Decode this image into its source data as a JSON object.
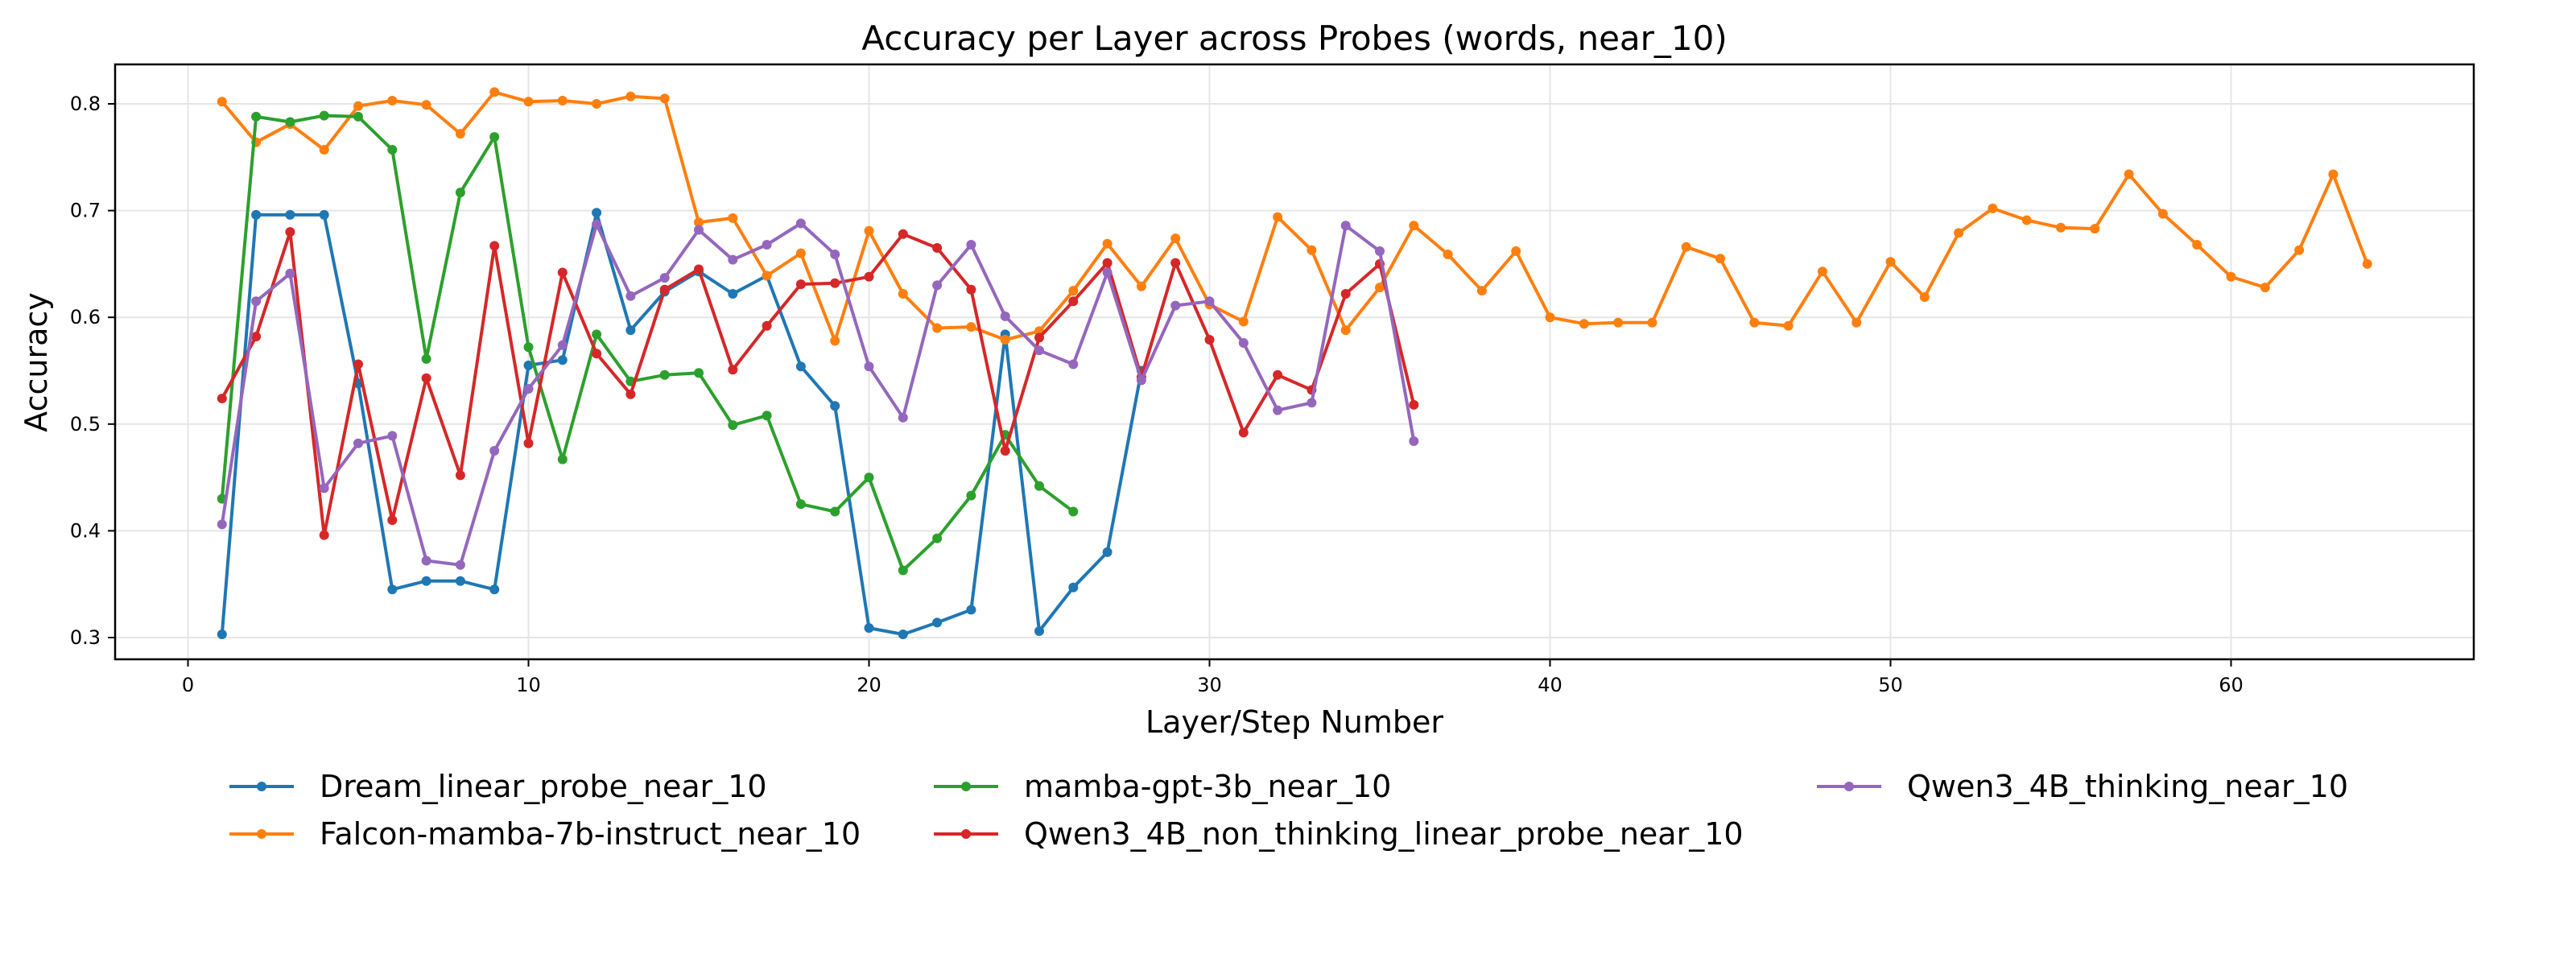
{
  "chart_data": {
    "type": "line",
    "title": "Accuracy per Layer across Probes (words, near_10)",
    "xlabel": "Layer/Step Number",
    "ylabel": "Accuracy",
    "xlim": [
      -2.2,
      67.1
    ],
    "ylim": [
      0.28,
      0.837
    ],
    "xticks": [
      0,
      10,
      20,
      30,
      40,
      50,
      60
    ],
    "yticks": [
      0.3,
      0.4,
      0.5,
      0.6,
      0.7,
      0.8
    ],
    "grid": true,
    "legend_position": "below, 3 columns",
    "series": [
      {
        "name": "Dream_linear_probe_near_10",
        "color": "#1f77b4",
        "x": [
          1,
          2,
          3,
          4,
          5,
          6,
          7,
          8,
          9,
          10,
          11,
          12,
          13,
          14,
          15,
          16,
          17,
          18,
          19,
          20,
          21,
          22,
          23,
          24,
          25,
          26,
          27,
          28
        ],
        "values": [
          0.303,
          0.696,
          0.696,
          0.696,
          0.538,
          0.345,
          0.353,
          0.353,
          0.345,
          0.555,
          0.56,
          0.698,
          0.588,
          0.624,
          0.643,
          0.622,
          0.639,
          0.554,
          0.517,
          0.309,
          0.303,
          0.314,
          0.326,
          0.584,
          0.306,
          0.347,
          0.38,
          0.55
        ]
      },
      {
        "name": "Falcon-mamba-7b-instruct_near_10",
        "color": "#ff7f0e",
        "x": [
          1,
          2,
          3,
          4,
          5,
          6,
          7,
          8,
          9,
          10,
          11,
          12,
          13,
          14,
          15,
          16,
          17,
          18,
          19,
          20,
          21,
          22,
          23,
          24,
          25,
          26,
          27,
          28,
          29,
          30,
          31,
          32,
          33,
          34,
          35,
          36,
          37,
          38,
          39,
          40,
          41,
          42,
          43,
          44,
          45,
          46,
          47,
          48,
          49,
          50,
          51,
          52,
          53,
          54,
          55,
          56,
          57,
          58,
          59,
          60,
          61,
          62,
          63,
          64
        ],
        "values": [
          0.802,
          0.764,
          0.781,
          0.757,
          0.798,
          0.803,
          0.799,
          0.772,
          0.811,
          0.802,
          0.803,
          0.8,
          0.807,
          0.805,
          0.689,
          0.693,
          0.639,
          0.66,
          0.578,
          0.681,
          0.622,
          0.59,
          0.591,
          0.579,
          0.587,
          0.625,
          0.669,
          0.629,
          0.674,
          0.612,
          0.596,
          0.694,
          0.663,
          0.588,
          0.628,
          0.686,
          0.659,
          0.625,
          0.662,
          0.6,
          0.594,
          0.595,
          0.595,
          0.666,
          0.655,
          0.595,
          0.592,
          0.643,
          0.595,
          0.652,
          0.619,
          0.679,
          0.702,
          0.691,
          0.684,
          0.683,
          0.734,
          0.697,
          0.668,
          0.638,
          0.628,
          0.663,
          0.734,
          0.65
        ]
      },
      {
        "name": "mamba-gpt-3b_near_10",
        "color": "#2ca02c",
        "x": [
          1,
          2,
          3,
          4,
          5,
          6,
          7,
          8,
          9,
          10,
          11,
          12,
          13,
          14,
          15,
          16,
          17,
          18,
          19,
          20,
          21,
          22,
          23,
          24,
          25,
          26
        ],
        "values": [
          0.43,
          0.788,
          0.783,
          0.789,
          0.788,
          0.757,
          0.561,
          0.717,
          0.769,
          0.572,
          0.467,
          0.584,
          0.54,
          0.546,
          0.548,
          0.499,
          0.508,
          0.425,
          0.418,
          0.45,
          0.363,
          0.393,
          0.433,
          0.49,
          0.442,
          0.418
        ]
      },
      {
        "name": "Qwen3_4B_non_thinking_linear_probe_near_10",
        "color": "#d62728",
        "x": [
          1,
          2,
          3,
          4,
          5,
          6,
          7,
          8,
          9,
          10,
          11,
          12,
          13,
          14,
          15,
          16,
          17,
          18,
          19,
          20,
          21,
          22,
          23,
          24,
          25,
          26,
          27,
          28,
          29,
          30,
          31,
          32,
          33,
          34,
          35,
          36
        ],
        "values": [
          0.524,
          0.582,
          0.68,
          0.396,
          0.556,
          0.41,
          0.543,
          0.452,
          0.667,
          0.482,
          0.642,
          0.566,
          0.528,
          0.626,
          0.645,
          0.551,
          0.592,
          0.631,
          0.632,
          0.638,
          0.678,
          0.665,
          0.626,
          0.475,
          0.581,
          0.615,
          0.651,
          0.544,
          0.651,
          0.579,
          0.492,
          0.546,
          0.532,
          0.622,
          0.65,
          0.518
        ]
      },
      {
        "name": "Qwen3_4B_thinking_near_10",
        "color": "#9467bd",
        "x": [
          1,
          2,
          3,
          4,
          5,
          6,
          7,
          8,
          9,
          10,
          11,
          12,
          13,
          14,
          15,
          16,
          17,
          18,
          19,
          20,
          21,
          22,
          23,
          24,
          25,
          26,
          27,
          28,
          29,
          30,
          31,
          32,
          33,
          34,
          35,
          36
        ],
        "values": [
          0.406,
          0.615,
          0.641,
          0.44,
          0.482,
          0.489,
          0.372,
          0.368,
          0.475,
          0.533,
          0.574,
          0.687,
          0.62,
          0.637,
          0.682,
          0.654,
          0.668,
          0.688,
          0.659,
          0.554,
          0.506,
          0.63,
          0.668,
          0.601,
          0.569,
          0.556,
          0.642,
          0.541,
          0.611,
          0.615,
          0.576,
          0.513,
          0.52,
          0.686,
          0.662,
          0.484
        ]
      }
    ]
  }
}
